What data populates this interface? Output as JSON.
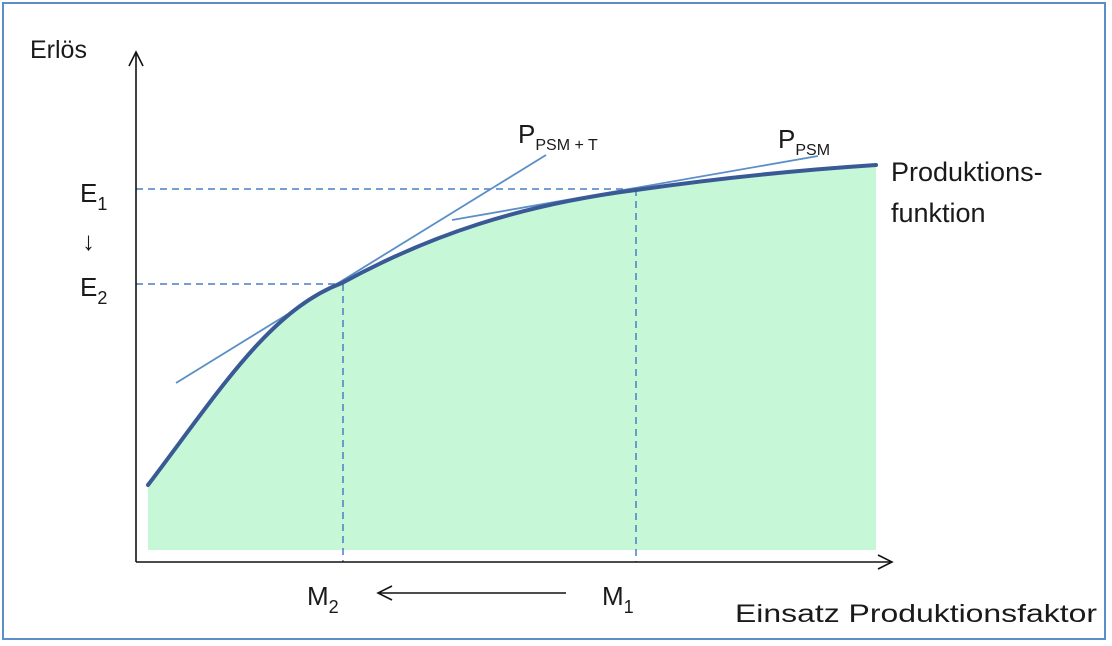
{
  "diagram": {
    "y_axis_label": "Erlös",
    "x_axis_label": "Einsatz Produktionsfaktor",
    "curve_label_line1": "Produktions-",
    "curve_label_line2": "funktion",
    "e1": {
      "main": "E",
      "sub": "1"
    },
    "e2": {
      "main": "E",
      "sub": "2"
    },
    "m1": {
      "main": "M",
      "sub": "1"
    },
    "m2": {
      "main": "M",
      "sub": "2"
    },
    "tangent_psm_t": {
      "main": "P",
      "sub": "PSM + T"
    },
    "tangent_psm": {
      "main": "P",
      "sub": "PSM"
    },
    "e_arrow": "↓",
    "colors": {
      "frame": "#5b8fc7",
      "fill": "#c6f8d8",
      "curve": "#3a5a96",
      "tangent": "#5b8fc7",
      "dashed": "#4a7ec4"
    }
  }
}
